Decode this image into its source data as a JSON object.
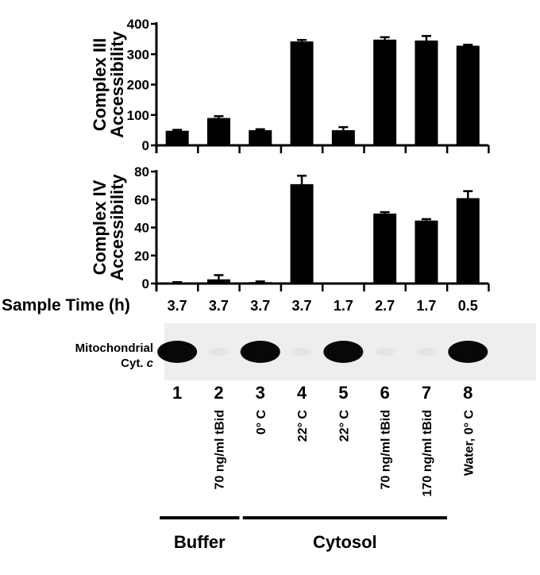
{
  "chart_data": [
    {
      "type": "bar",
      "ylabel": [
        "Complex III",
        "Accessibility"
      ],
      "ylim": [
        0,
        400
      ],
      "yticks": [
        0,
        100,
        200,
        300,
        400
      ],
      "categories": [
        "1",
        "2",
        "3",
        "4",
        "5",
        "6",
        "7",
        "8"
      ],
      "values": [
        48,
        90,
        50,
        342,
        50,
        348,
        345,
        328
      ],
      "errors": [
        3,
        6,
        3,
        5,
        10,
        8,
        15,
        3
      ],
      "bar_color": "#000000",
      "grid": false
    },
    {
      "type": "bar",
      "ylabel": [
        "Complex IV",
        "Accessibility"
      ],
      "ylim": [
        0,
        80
      ],
      "yticks": [
        0,
        20,
        40,
        60,
        80
      ],
      "categories": [
        "1",
        "2",
        "3",
        "4",
        "5",
        "6",
        "7",
        "8"
      ],
      "values": [
        0,
        3,
        1,
        71,
        0,
        50,
        45,
        61
      ],
      "errors": [
        1,
        3,
        0.5,
        6,
        0,
        1,
        1,
        5
      ],
      "bar_color": "#000000",
      "grid": false
    }
  ],
  "sample_time": {
    "label": "Sample Time (h)",
    "values": [
      "3.7",
      "3.7",
      "3.7",
      "3.7",
      "1.7",
      "2.7",
      "1.7",
      "0.5"
    ]
  },
  "blot": {
    "label_line1": "Mitochondrial",
    "label_line2": "Cyt. ",
    "label_italic": "c",
    "band_present": [
      true,
      false,
      true,
      false,
      true,
      false,
      false,
      true
    ]
  },
  "lanes": [
    "1",
    "2",
    "3",
    "4",
    "5",
    "6",
    "7",
    "8"
  ],
  "conditions": [
    "",
    "70 ng/ml tBid",
    "0° C",
    "22° C",
    "22° C",
    "70 ng/ml tBid",
    "170 ng/ml tBid",
    "Water, 0° C"
  ],
  "groups": [
    {
      "label": "Buffer",
      "lanes": [
        1,
        2
      ]
    },
    {
      "label": "Cytosol",
      "lanes": [
        3,
        7
      ]
    }
  ]
}
